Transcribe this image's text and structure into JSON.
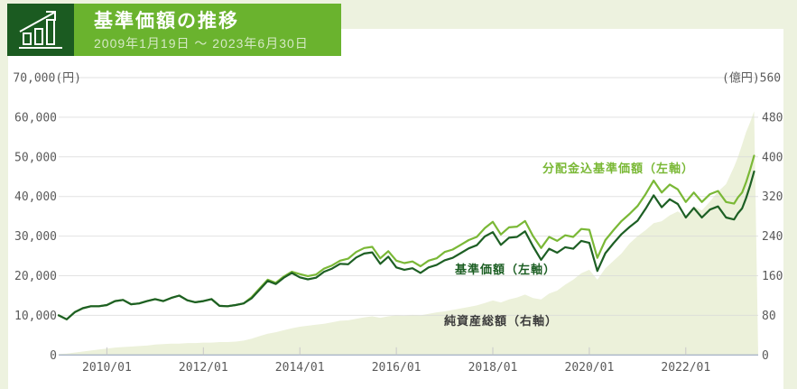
{
  "page": {
    "background_color": "#edf2df",
    "panel_color": "#ffffff"
  },
  "header": {
    "icon": "bar-chart-trend-icon",
    "icon_background": "#1b5b21",
    "bar_background": "#6ab32e",
    "title": "基準価額の推移",
    "subtitle": "2009年1月19日 ～ 2023年6月30日"
  },
  "chart_data": {
    "type": "line",
    "title": "基準価額の推移",
    "period": "2009年1月19日 ～ 2023年6月30日",
    "grid": true,
    "left_axis": {
      "unit": "(円)",
      "labels": [
        "70,000(円)",
        "60,000",
        "50,000",
        "40,000",
        "30,000",
        "20,000",
        "10,000",
        "0"
      ],
      "values": [
        70000,
        60000,
        50000,
        40000,
        30000,
        20000,
        10000,
        0
      ],
      "range": [
        0,
        70000
      ]
    },
    "right_axis": {
      "unit": "(億円)",
      "labels": [
        "(億円)560",
        "480",
        "400",
        "320",
        "240",
        "160",
        "80",
        "0"
      ],
      "values": [
        560,
        480,
        400,
        320,
        240,
        160,
        80,
        0
      ],
      "range": [
        0,
        560
      ]
    },
    "x_axis": {
      "tick_labels": [
        "2010/01",
        "2012/01",
        "2014/01",
        "2016/01",
        "2018/01",
        "2020/01",
        "2022/01"
      ],
      "tick_years": [
        2010,
        2012,
        2014,
        2016,
        2018,
        2020,
        2022
      ],
      "range_start": "2009-01",
      "range_end": "2023-06"
    },
    "dates": [
      "2009-01",
      "2009-03",
      "2009-05",
      "2009-07",
      "2009-09",
      "2009-11",
      "2010-01",
      "2010-03",
      "2010-05",
      "2010-07",
      "2010-09",
      "2010-11",
      "2011-01",
      "2011-03",
      "2011-05",
      "2011-07",
      "2011-09",
      "2011-11",
      "2012-01",
      "2012-03",
      "2012-05",
      "2012-07",
      "2012-09",
      "2012-11",
      "2013-01",
      "2013-03",
      "2013-05",
      "2013-07",
      "2013-09",
      "2013-11",
      "2014-01",
      "2014-03",
      "2014-05",
      "2014-07",
      "2014-09",
      "2014-11",
      "2015-01",
      "2015-03",
      "2015-05",
      "2015-07",
      "2015-09",
      "2015-11",
      "2016-01",
      "2016-03",
      "2016-05",
      "2016-07",
      "2016-09",
      "2016-11",
      "2017-01",
      "2017-03",
      "2017-05",
      "2017-07",
      "2017-09",
      "2017-11",
      "2018-01",
      "2018-03",
      "2018-05",
      "2018-07",
      "2018-09",
      "2018-11",
      "2019-01",
      "2019-03",
      "2019-05",
      "2019-07",
      "2019-09",
      "2019-11",
      "2020-01",
      "2020-03",
      "2020-05",
      "2020-07",
      "2020-09",
      "2020-11",
      "2021-01",
      "2021-03",
      "2021-05",
      "2021-07",
      "2021-09",
      "2021-11",
      "2022-01",
      "2022-03",
      "2022-05",
      "2022-07",
      "2022-09",
      "2022-11",
      "2023-01",
      "2023-02",
      "2023-03",
      "2023-04",
      "2023-05",
      "2023-06"
    ],
    "series": [
      {
        "name": "分配金込基準価額（左軸）",
        "axis": "left",
        "type": "line",
        "color": "#7ab836",
        "values": [
          10000,
          9000,
          10800,
          11800,
          12300,
          12300,
          12600,
          13600,
          13900,
          12800,
          13000,
          13600,
          14100,
          13600,
          14400,
          15000,
          13800,
          13300,
          13600,
          14100,
          12400,
          12300,
          12600,
          13000,
          14600,
          16800,
          19000,
          18200,
          19800,
          21000,
          20400,
          19900,
          20300,
          21800,
          22600,
          23800,
          24300,
          26000,
          27000,
          27300,
          24400,
          26200,
          23800,
          23200,
          23600,
          22400,
          23800,
          24400,
          26000,
          26600,
          27800,
          29000,
          29800,
          32000,
          33600,
          30400,
          32200,
          32400,
          33800,
          30000,
          27000,
          29800,
          28800,
          30200,
          29800,
          31800,
          31600,
          24500,
          29000,
          31500,
          33800,
          35600,
          37600,
          40600,
          44000,
          41000,
          43000,
          41800,
          38600,
          41000,
          38600,
          40600,
          41400,
          38600,
          38200,
          39800,
          41000,
          43600,
          46800,
          50300
        ]
      },
      {
        "name": "基準価額（左軸）",
        "axis": "left",
        "type": "line",
        "color": "#1d5f24",
        "values": [
          10000,
          9000,
          10800,
          11800,
          12300,
          12300,
          12600,
          13600,
          13900,
          12800,
          13000,
          13600,
          14100,
          13600,
          14400,
          15000,
          13800,
          13300,
          13600,
          14100,
          12400,
          12300,
          12600,
          13000,
          14300,
          16500,
          18700,
          17900,
          19500,
          20700,
          19600,
          19100,
          19500,
          21000,
          21800,
          23000,
          22900,
          24600,
          25600,
          25900,
          23000,
          24800,
          22100,
          21500,
          21900,
          20700,
          22100,
          22700,
          23900,
          24500,
          25700,
          26900,
          27700,
          29900,
          31000,
          27800,
          29600,
          29800,
          31200,
          27400,
          24000,
          26800,
          25800,
          27200,
          26800,
          28800,
          28300,
          21200,
          25700,
          28200,
          30500,
          32300,
          33900,
          36900,
          40300,
          37300,
          39300,
          38100,
          34700,
          37100,
          34700,
          36700,
          37500,
          34700,
          34200,
          35800,
          37000,
          39600,
          42800,
          46300
        ]
      },
      {
        "name": "純資産総額（右軸）",
        "axis": "right",
        "type": "area",
        "color": "#ecf1da",
        "label_color": "#3c3c3c",
        "values": [
          2,
          3,
          5,
          7,
          9,
          11,
          13,
          15,
          16,
          17,
          18,
          19,
          21,
          22,
          23,
          23,
          24,
          24,
          25,
          25,
          26,
          26,
          27,
          29,
          33,
          38,
          43,
          46,
          50,
          54,
          57,
          59,
          61,
          63,
          66,
          69,
          70,
          73,
          76,
          78,
          75,
          78,
          80,
          79,
          81,
          80,
          83,
          86,
          88,
          91,
          94,
          97,
          100,
          105,
          110,
          106,
          112,
          116,
          122,
          115,
          112,
          124,
          130,
          142,
          152,
          165,
          172,
          152,
          175,
          190,
          205,
          225,
          240,
          252,
          266,
          270,
          282,
          290,
          280,
          300,
          292,
          310,
          330,
          345,
          380,
          400,
          425,
          450,
          470,
          492
        ]
      }
    ],
    "style": {
      "gridline_color": "#d8d8d8",
      "baseline_color": "#aab6c8",
      "tick_color": "#c9c9c9",
      "axis_text_color": "#5a5a5a"
    }
  }
}
